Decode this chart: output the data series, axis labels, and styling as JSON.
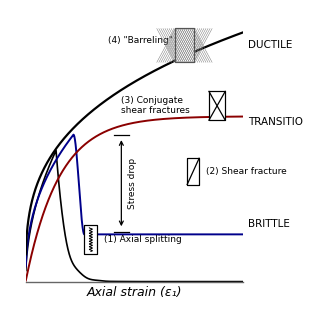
{
  "xlabel": "Axial strain (ε₁)",
  "bg_color": "#ffffff",
  "label_ductile": "DUCTILE",
  "label_transitional": "TRANSITIO",
  "label_brittle": "BRITTLE",
  "label_barreling": "(4) \"Barreling\"",
  "label_conjugate": "(3) Conjugate\nshear fractures",
  "label_shear_fracture": "(2) Shear fracture",
  "label_axial_splitting": "(1) Axial splitting",
  "label_stress_drop": "Stress drop",
  "curve_ductile_color": "#000000",
  "curve_transitional_color": "#8B0000",
  "curve_brittle_blue_color": "#00008B",
  "curve_brittle_black_color": "#000000",
  "xlim": [
    0,
    1.0
  ],
  "ylim": [
    0,
    1.0
  ]
}
